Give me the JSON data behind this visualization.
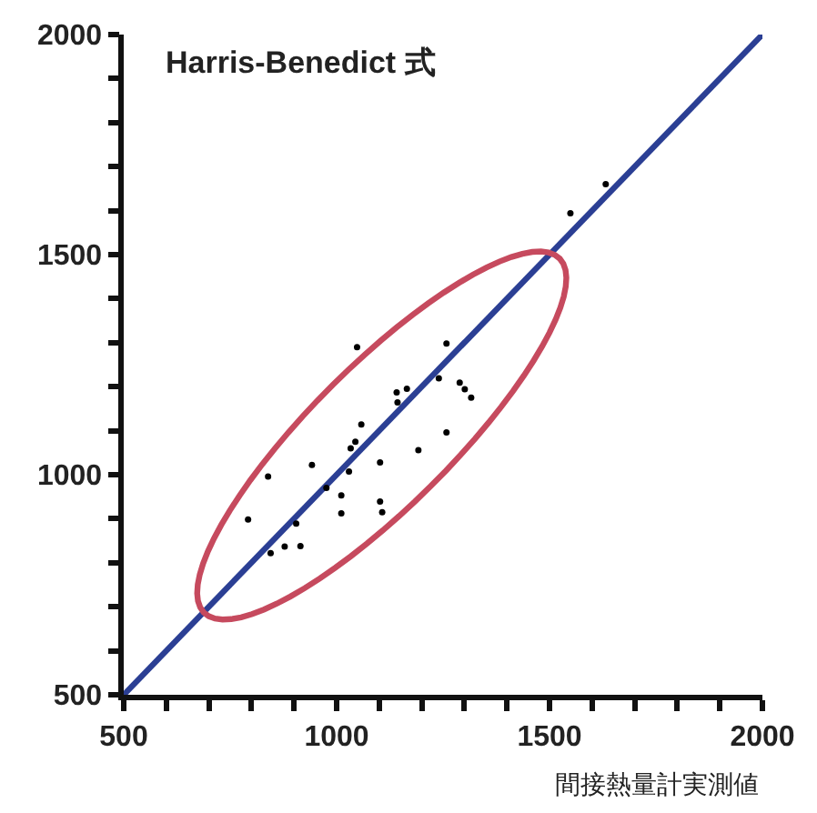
{
  "chart_data": {
    "type": "scatter",
    "title": "Harris-Benedict 式",
    "xlabel": "間接熱量計実測値",
    "xlim": [
      500,
      2000
    ],
    "ylim": [
      500,
      2000
    ],
    "xticks": [
      500,
      {
        "value": 600,
        "label": null
      },
      {
        "value": 700,
        "label": null
      },
      {
        "value": 800,
        "label": null
      },
      {
        "value": 900,
        "label": null
      },
      1000,
      {
        "value": 1100,
        "label": null
      },
      {
        "value": 1200,
        "label": null
      },
      {
        "value": 1300,
        "label": null
      },
      {
        "value": 1400,
        "label": null
      },
      1500,
      {
        "value": 1600,
        "label": null
      },
      {
        "value": 1700,
        "label": null
      },
      {
        "value": 1800,
        "label": null
      },
      {
        "value": 1900,
        "label": null
      },
      2000
    ],
    "yticks": [
      500,
      {
        "value": 600,
        "label": null
      },
      {
        "value": 700,
        "label": null
      },
      {
        "value": 800,
        "label": null
      },
      {
        "value": 900,
        "label": null
      },
      1000,
      {
        "value": 1100,
        "label": null
      },
      {
        "value": 1200,
        "label": null
      },
      {
        "value": 1300,
        "label": null
      },
      {
        "value": 1400,
        "label": null
      },
      1500,
      {
        "value": 1600,
        "label": null
      },
      {
        "value": 1700,
        "label": null
      },
      {
        "value": 1800,
        "label": null
      },
      {
        "value": 1900,
        "label": null
      },
      2000
    ],
    "series": [
      {
        "type": "scatter",
        "color": "#000000",
        "marker": "circle",
        "x": [
          792,
          839,
          845,
          878,
          905,
          915,
          942,
          976,
          1011,
          1011,
          1029,
          1033,
          1044,
          1048,
          1058,
          1102,
          1102,
          1107,
          1141,
          1143,
          1165,
          1192,
          1240,
          1258,
          1258,
          1289,
          1301,
          1316,
          1549,
          1632
        ],
        "values": [
          898,
          996,
          822,
          837,
          889,
          838,
          1022,
          970,
          953,
          912,
          1007,
          1060,
          1075,
          1290,
          1114,
          1028,
          939,
          915,
          1187,
          1164,
          1195,
          1056,
          1219,
          1298,
          1096,
          1209,
          1194,
          1175,
          1594,
          1660
        ]
      },
      {
        "type": "line",
        "color": "#2b3f94",
        "marker": "none",
        "line_style": "solid",
        "x": [
          500,
          2000
        ],
        "values": [
          500,
          2000
        ]
      }
    ]
  }
}
